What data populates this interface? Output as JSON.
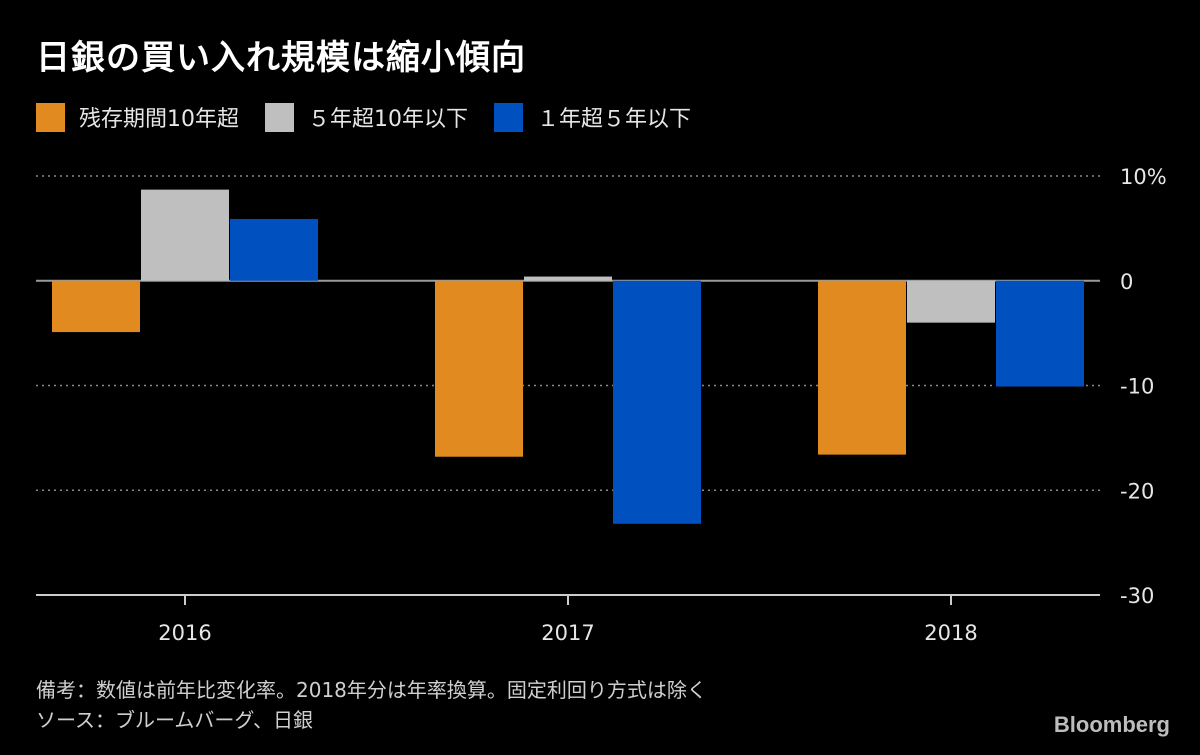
{
  "chart_data": {
    "type": "bar",
    "title": "日銀の買い入れ規模は縮小傾向",
    "categories": [
      "2016",
      "2017",
      "2018"
    ],
    "series": [
      {
        "name": "残存期間10年超",
        "color": "#e08a20",
        "values": [
          -4.9,
          -16.8,
          -16.6
        ]
      },
      {
        "name": "５年超10年以下",
        "color": "#bfbfbf",
        "values": [
          8.7,
          0.4,
          -4.0
        ]
      },
      {
        "name": "１年超５年以下",
        "color": "#0050c0",
        "values": [
          5.9,
          -23.2,
          -10.1
        ]
      }
    ],
    "ylim": [
      -30,
      10
    ],
    "yticks": [
      10,
      0,
      -10,
      -20,
      -30
    ],
    "ytick_labels": [
      "10%",
      "0",
      "-10",
      "-20",
      "-30"
    ],
    "xlabel": "",
    "ylabel": "",
    "grid": true,
    "legend_position": "top-left"
  },
  "notes": {
    "line1": "備考：数値は前年比変化率。2018年分は年率換算。固定利回り方式は除く",
    "line2": "ソース：ブルームバーグ、日銀"
  },
  "brand": "Bloomberg",
  "colors": {
    "background": "#000000",
    "grid": "#8a8a8a",
    "axis": "#cccccc",
    "text": "#e6e6e6"
  }
}
